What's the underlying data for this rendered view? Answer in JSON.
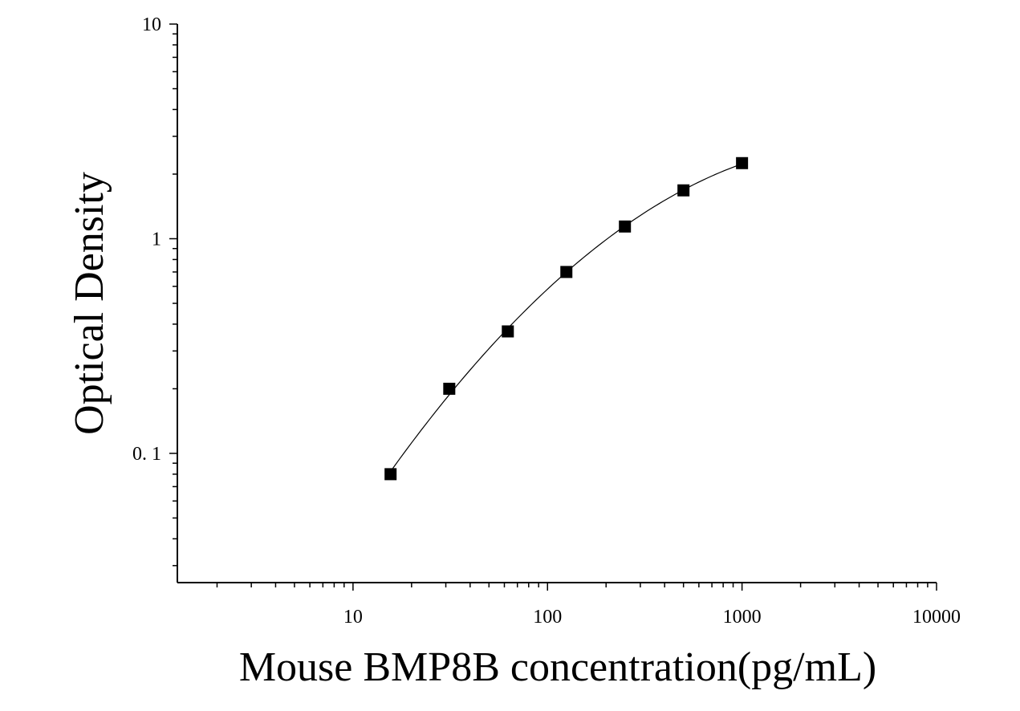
{
  "chart_data": {
    "type": "scatter",
    "title": "",
    "xlabel": "Mouse BMP8B concentration(pg/mL)",
    "ylabel": "Optical Density",
    "xscale": "log",
    "yscale": "log",
    "xlim": [
      1.25,
      10000
    ],
    "ylim": [
      0.025,
      10
    ],
    "x_tick_labels": [
      "10",
      "100",
      "1000",
      "10000"
    ],
    "x_tick_values": [
      10,
      100,
      1000,
      10000
    ],
    "y_tick_labels": [
      "0. 1",
      "1",
      "10"
    ],
    "y_tick_values": [
      0.1,
      1,
      10
    ],
    "grid": false,
    "legend": "none",
    "series": [
      {
        "marker": "square",
        "color": "#000000",
        "x": [
          15.6,
          31.25,
          62.5,
          125,
          250,
          500,
          1000
        ],
        "y": [
          0.08,
          0.2,
          0.37,
          0.7,
          1.14,
          1.68,
          2.25
        ]
      }
    ],
    "fit_curve": {
      "color": "#000000",
      "style": "smooth line through points"
    }
  }
}
